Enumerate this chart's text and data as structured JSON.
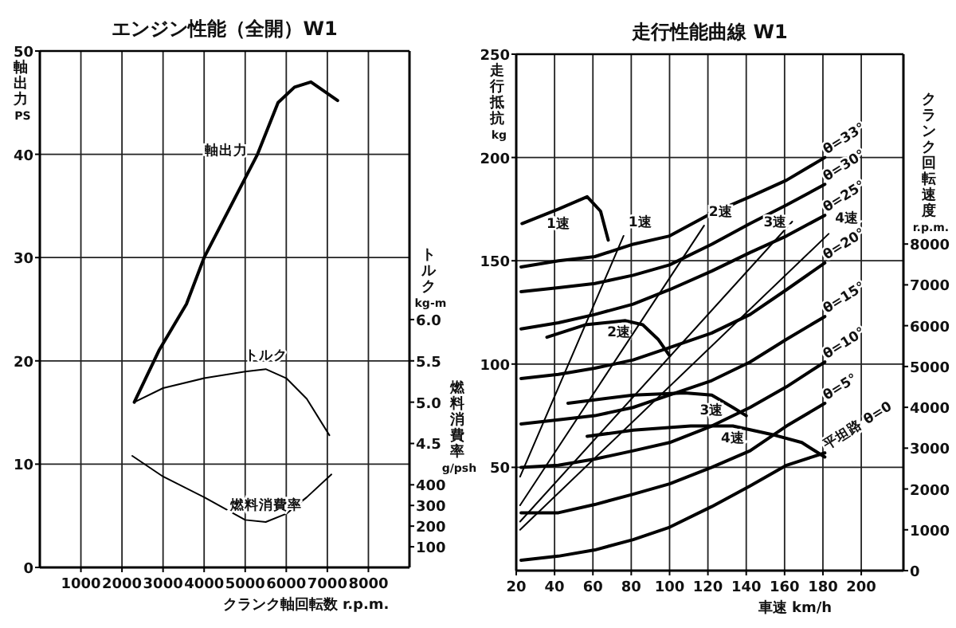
{
  "chart_data": [
    {
      "type": "line",
      "title": "エンジン性能（全開）W1",
      "xlabel": "クランク軸回転数 r.p.m.",
      "ylabel": "軸出力 PS",
      "y2label": "トルク kg-m",
      "y3label": "燃料消費率 g/psh",
      "xlim": [
        0,
        9000
      ],
      "xticks": [
        1000,
        2000,
        3000,
        4000,
        5000,
        6000,
        7000,
        8000
      ],
      "ylim": [
        0,
        50
      ],
      "yticks": [
        0,
        10,
        20,
        30,
        40,
        50
      ],
      "y2lim": [
        3.0,
        9.25
      ],
      "y2ticks": [
        4.5,
        {
          "value": 5,
          "label": "5.0"
        },
        5.5,
        {
          "value": 6,
          "label": "6.0"
        }
      ],
      "y3lim": [
        0,
        2500
      ],
      "y3ticks": [
        100,
        200,
        300,
        400
      ],
      "grid": true,
      "series": [
        {
          "name": "軸出力",
          "color": "#000000",
          "x": [
            2300,
            2900,
            3570,
            4000,
            5300,
            5800,
            6200,
            6600,
            7250
          ],
          "values": [
            16,
            21,
            25.5,
            30,
            40,
            45,
            46.5,
            47,
            45.2
          ]
        },
        {
          "name": "トルク",
          "color": "#000000",
          "axis": "y2",
          "x": [
            2300,
            3000,
            4000,
            5000,
            5500,
            6000,
            6500,
            7050
          ],
          "values": [
            5.0,
            5.17,
            5.29,
            5.37,
            5.4,
            5.29,
            5.04,
            4.6
          ]
        },
        {
          "name": "燃料消費率",
          "color": "#000000",
          "axis": "y3",
          "x": [
            2250,
            3000,
            4000,
            5000,
            5500,
            6000,
            6500,
            7100
          ],
          "values": [
            540,
            440,
            340,
            230,
            220,
            260,
            340,
            450
          ]
        }
      ]
    },
    {
      "type": "line",
      "title": "走行性能曲線 W1",
      "xlabel": "車速 km/h",
      "ylabel": "走行抵抗 kg",
      "y2label": "クランク回転速度 r.p.m.",
      "xlim": [
        20,
        222
      ],
      "xticks": [
        20,
        40,
        60,
        80,
        100,
        120,
        140,
        160,
        180,
        200
      ],
      "ylim": [
        0,
        250
      ],
      "yticks": [
        50,
        100,
        150,
        200,
        250
      ],
      "y2lim": [
        0,
        12650
      ],
      "y2ticks": [
        0,
        1000,
        2000,
        3000,
        4000,
        5000,
        6000,
        7000,
        8000
      ],
      "grid": true,
      "series": [
        {
          "name": "θ=33°",
          "color": "#000000",
          "x": [
            22.5,
            42,
            61,
            81,
            100,
            122,
            142,
            161,
            181
          ],
          "values": [
            147,
            150,
            152,
            158,
            162,
            173,
            181,
            189,
            200
          ]
        },
        {
          "name": "θ=30°",
          "color": "#000000",
          "x": [
            22.5,
            42,
            61,
            81,
            100,
            122,
            142,
            161,
            181
          ],
          "values": [
            135,
            137,
            139,
            143,
            148,
            158,
            168,
            177,
            187
          ]
        },
        {
          "name": "θ=25°",
          "color": "#000000",
          "x": [
            22.5,
            42,
            61,
            81,
            100,
            122,
            142,
            161,
            181
          ],
          "values": [
            117,
            120,
            124,
            129,
            136,
            145,
            154,
            162,
            172
          ]
        },
        {
          "name": "θ=20°",
          "color": "#000000",
          "x": [
            22.5,
            42,
            61,
            81,
            100,
            122,
            142,
            161,
            181
          ],
          "values": [
            93,
            95,
            98,
            102,
            108,
            115,
            124,
            136,
            149
          ]
        },
        {
          "name": "θ=15°",
          "color": "#000000",
          "x": [
            22.5,
            42,
            61,
            81,
            100,
            122,
            142,
            161,
            181
          ],
          "values": [
            71,
            73,
            75,
            79,
            85,
            92,
            101,
            112,
            123
          ]
        },
        {
          "name": "θ=10°",
          "color": "#000000",
          "x": [
            22.5,
            42,
            61,
            81,
            100,
            122,
            142,
            161,
            181
          ],
          "values": [
            50,
            51,
            54,
            58,
            62,
            70,
            79,
            89,
            101
          ]
        },
        {
          "name": "θ=5°",
          "color": "#000000",
          "x": [
            22.5,
            42,
            61,
            81,
            100,
            122,
            142,
            161,
            181
          ],
          "values": [
            28,
            28,
            32,
            37,
            42,
            50,
            58,
            70,
            81
          ]
        },
        {
          "name": "平坦路 θ=0",
          "color": "#000000",
          "x": [
            22.5,
            42,
            61,
            81,
            100,
            122,
            142,
            161,
            181
          ],
          "values": [
            5,
            7,
            10,
            15,
            21,
            31,
            41,
            51,
            57
          ]
        },
        {
          "name": "1速",
          "color": "#000000",
          "x": [
            23,
            42,
            57,
            64,
            68
          ],
          "values": [
            168,
            175,
            181,
            174,
            160
          ]
        },
        {
          "name": "2速",
          "color": "#000000",
          "x": [
            36,
            56,
            77,
            86,
            94,
            100
          ],
          "values": [
            113,
            119,
            121,
            119,
            112,
            104
          ]
        },
        {
          "name": "3速",
          "color": "#000000",
          "x": [
            47,
            81,
            108,
            122,
            133,
            140
          ],
          "values": [
            81,
            85,
            86,
            85,
            79,
            75
          ]
        },
        {
          "name": "4速",
          "color": "#000000",
          "x": [
            57,
            81,
            111,
            133,
            153,
            169,
            181
          ],
          "values": [
            65,
            68,
            70,
            70,
            66,
            62,
            55
          ]
        },
        {
          "name": "1速",
          "color": "#000000",
          "axis": "y2",
          "x": [
            22,
            76
          ],
          "values": [
            2300,
            8200
          ]
        },
        {
          "name": "2速",
          "color": "#000000",
          "axis": "y2",
          "x": [
            22,
            118
          ],
          "values": [
            1600,
            8450
          ]
        },
        {
          "name": "3速",
          "color": "#000000",
          "axis": "y2",
          "x": [
            22,
            164
          ],
          "values": [
            1200,
            8550
          ]
        },
        {
          "name": "4速",
          "color": "#000000",
          "axis": "y2",
          "x": [
            22,
            183
          ],
          "values": [
            1000,
            8250
          ]
        }
      ]
    }
  ]
}
